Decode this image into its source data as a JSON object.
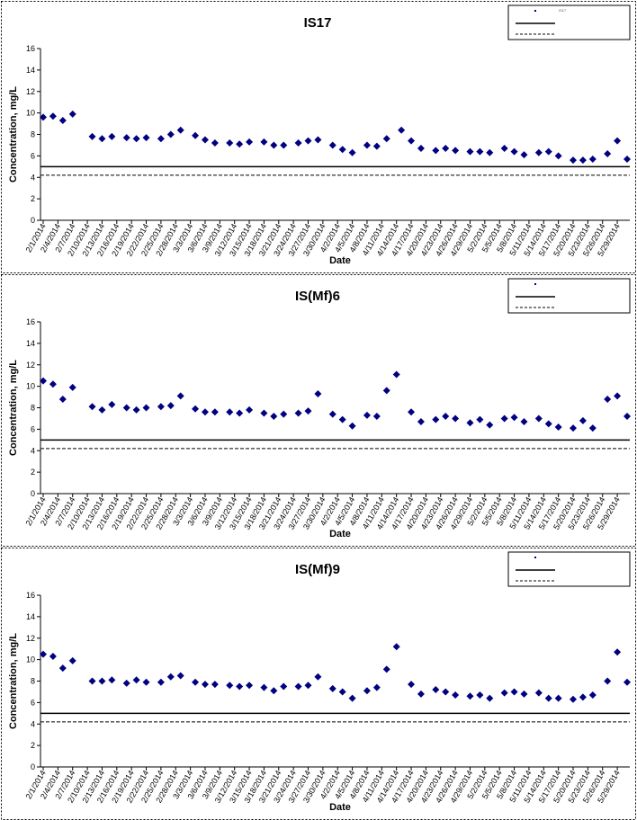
{
  "chart_data": [
    {
      "type": "scatter",
      "title": "IS17",
      "xlabel": "Date",
      "ylabel": "Concentration, mg/L",
      "ylim": [
        0,
        16
      ],
      "yticks": [
        0,
        2,
        4,
        6,
        8,
        10,
        12,
        14,
        16
      ],
      "xlim": [
        "2/1/2014",
        "5/31/2014"
      ],
      "x_tick_labels": [
        "2/1/2014",
        "2/4/2014",
        "2/7/2014",
        "2/10/2014",
        "2/13/2014",
        "2/16/2014",
        "2/19/2014",
        "2/22/2014",
        "2/25/2014",
        "2/28/2014",
        "3/3/2014",
        "3/6/2014",
        "3/9/2014",
        "3/12/2014",
        "3/15/2014",
        "3/18/2014",
        "3/21/2014",
        "3/24/2014",
        "3/27/2014",
        "3/30/2014",
        "4/2/2014",
        "4/5/2014",
        "4/8/2014",
        "4/11/2014",
        "4/14/2014",
        "4/17/2014",
        "4/20/2014",
        "4/23/2014",
        "4/26/2014",
        "4/29/2014",
        "5/2/2014",
        "5/5/2014",
        "5/8/2014",
        "5/11/2014",
        "5/14/2014",
        "5/17/2014",
        "5/20/2014",
        "5/23/2014",
        "5/26/2014",
        "5/29/2014"
      ],
      "grid": false,
      "legend_position": "top-right",
      "legend_entries": [
        "IS17",
        "",
        ""
      ],
      "reference_lines": [
        {
          "style": "solid",
          "y": 5.0
        },
        {
          "style": "dashed",
          "y": 4.2
        }
      ],
      "series": [
        {
          "name": "IS17",
          "color": "#000080",
          "x": [
            "2/1/2014",
            "2/3/2014",
            "2/5/2014",
            "2/7/2014",
            "2/11/2014",
            "2/13/2014",
            "2/15/2014",
            "2/18/2014",
            "2/20/2014",
            "2/22/2014",
            "2/25/2014",
            "2/27/2014",
            "2/29/2014",
            "3/4/2014",
            "3/6/2014",
            "3/8/2014",
            "3/11/2014",
            "3/13/2014",
            "3/15/2014",
            "3/18/2014",
            "3/20/2014",
            "3/22/2014",
            "3/25/2014",
            "3/27/2014",
            "3/29/2014",
            "4/1/2014",
            "4/3/2014",
            "4/5/2014",
            "4/8/2014",
            "4/10/2014",
            "4/12/2014",
            "4/15/2014",
            "4/17/2014",
            "4/19/2014",
            "4/22/2014",
            "4/24/2014",
            "4/26/2014",
            "4/29/2014",
            "5/1/2014",
            "5/3/2014",
            "5/6/2014",
            "5/8/2014",
            "5/10/2014",
            "5/13/2014",
            "5/15/2014",
            "5/17/2014",
            "5/20/2014",
            "5/22/2014",
            "5/24/2014",
            "5/27/2014",
            "5/29/2014",
            "5/31/2014"
          ],
          "y": [
            9.6,
            9.7,
            9.3,
            9.9,
            7.8,
            7.6,
            7.8,
            7.7,
            7.6,
            7.7,
            7.6,
            8.0,
            8.4,
            7.9,
            7.5,
            7.2,
            7.2,
            7.1,
            7.3,
            7.3,
            7.0,
            7.0,
            7.2,
            7.4,
            7.5,
            7.0,
            6.6,
            6.3,
            7.0,
            6.9,
            7.6,
            8.4,
            7.4,
            6.7,
            6.5,
            6.7,
            6.5,
            6.4,
            6.4,
            6.3,
            6.7,
            6.4,
            6.1,
            6.3,
            6.4,
            6.0,
            5.6,
            5.6,
            5.7,
            6.2,
            7.4,
            5.7
          ]
        }
      ]
    },
    {
      "type": "scatter",
      "title": "IS(Mf)6",
      "xlabel": "Date",
      "ylabel": "Concentration, mg/L",
      "ylim": [
        0,
        16
      ],
      "yticks": [
        0,
        2,
        4,
        6,
        8,
        10,
        12,
        14,
        16
      ],
      "xlim": [
        "2/1/2014",
        "5/31/2014"
      ],
      "x_tick_labels": [
        "2/1/2014",
        "2/4/2014",
        "2/7/2014",
        "2/10/2014",
        "2/13/2014",
        "2/16/2014",
        "2/19/2014",
        "2/22/2014",
        "2/25/2014",
        "2/28/2014",
        "3/3/2014",
        "3/6/2014",
        "3/9/2014",
        "3/12/2014",
        "3/15/2014",
        "3/18/2014",
        "3/21/2014",
        "3/24/2014",
        "3/27/2014",
        "3/30/2014",
        "4/2/2014",
        "4/5/2014",
        "4/8/2014",
        "4/11/2014",
        "4/14/2014",
        "4/17/2014",
        "4/20/2014",
        "4/23/2014",
        "4/26/2014",
        "4/29/2014",
        "5/2/2014",
        "5/5/2014",
        "5/8/2014",
        "5/11/2014",
        "5/14/2014",
        "5/17/2014",
        "5/20/2014",
        "5/23/2014",
        "5/26/2014",
        "5/29/2014"
      ],
      "grid": false,
      "legend_position": "top-right",
      "legend_entries": [
        "",
        "",
        ""
      ],
      "reference_lines": [
        {
          "style": "solid",
          "y": 5.0
        },
        {
          "style": "dashed",
          "y": 4.2
        }
      ],
      "series": [
        {
          "name": "",
          "color": "#000080",
          "x": [
            "2/1/2014",
            "2/3/2014",
            "2/5/2014",
            "2/7/2014",
            "2/11/2014",
            "2/13/2014",
            "2/15/2014",
            "2/18/2014",
            "2/20/2014",
            "2/22/2014",
            "2/25/2014",
            "2/27/2014",
            "2/29/2014",
            "3/4/2014",
            "3/6/2014",
            "3/8/2014",
            "3/11/2014",
            "3/13/2014",
            "3/15/2014",
            "3/18/2014",
            "3/20/2014",
            "3/22/2014",
            "3/25/2014",
            "3/27/2014",
            "3/29/2014",
            "4/1/2014",
            "4/3/2014",
            "4/5/2014",
            "4/8/2014",
            "4/10/2014",
            "4/12/2014",
            "4/14/2014",
            "4/17/2014",
            "4/19/2014",
            "4/22/2014",
            "4/24/2014",
            "4/26/2014",
            "4/29/2014",
            "5/1/2014",
            "5/3/2014",
            "5/6/2014",
            "5/8/2014",
            "5/10/2014",
            "5/13/2014",
            "5/15/2014",
            "5/17/2014",
            "5/20/2014",
            "5/22/2014",
            "5/24/2014",
            "5/27/2014",
            "5/29/2014",
            "5/31/2014"
          ],
          "y": [
            10.5,
            10.2,
            8.8,
            9.9,
            8.1,
            7.8,
            8.3,
            8.0,
            7.8,
            8.0,
            8.1,
            8.2,
            9.1,
            7.9,
            7.6,
            7.6,
            7.6,
            7.5,
            7.8,
            7.5,
            7.2,
            7.4,
            7.5,
            7.7,
            9.3,
            7.4,
            6.9,
            6.3,
            7.3,
            7.2,
            9.6,
            11.1,
            7.6,
            6.7,
            6.9,
            7.2,
            7.0,
            6.6,
            6.9,
            6.4,
            7.0,
            7.1,
            6.7,
            7.0,
            6.5,
            6.2,
            6.1,
            6.8,
            6.1,
            8.8,
            9.1,
            7.2
          ]
        }
      ]
    },
    {
      "type": "scatter",
      "title": "IS(Mf)9",
      "xlabel": "Date",
      "ylabel": "Concentration, mg/L",
      "ylim": [
        0,
        16
      ],
      "yticks": [
        0,
        2,
        4,
        6,
        8,
        10,
        12,
        14,
        16
      ],
      "xlim": [
        "2/1/2014",
        "5/31/2014"
      ],
      "x_tick_labels": [
        "2/1/2014",
        "2/4/2014",
        "2/7/2014",
        "2/10/2014",
        "2/13/2014",
        "2/16/2014",
        "2/19/2014",
        "2/22/2014",
        "2/25/2014",
        "2/28/2014",
        "3/3/2014",
        "3/6/2014",
        "3/9/2014",
        "3/12/2014",
        "3/15/2014",
        "3/18/2014",
        "3/21/2014",
        "3/24/2014",
        "3/27/2014",
        "3/30/2014",
        "4/2/2014",
        "4/5/2014",
        "4/8/2014",
        "4/11/2014",
        "4/14/2014",
        "4/17/2014",
        "4/20/2014",
        "4/23/2014",
        "4/26/2014",
        "4/29/2014",
        "5/2/2014",
        "5/5/2014",
        "5/8/2014",
        "5/11/2014",
        "5/14/2014",
        "5/17/2014",
        "5/20/2014",
        "5/23/2014",
        "5/26/2014",
        "5/29/2014"
      ],
      "grid": false,
      "legend_position": "top-right",
      "legend_entries": [
        "",
        "",
        ""
      ],
      "reference_lines": [
        {
          "style": "solid",
          "y": 5.0
        },
        {
          "style": "dashed",
          "y": 4.2
        }
      ],
      "series": [
        {
          "name": "",
          "color": "#000080",
          "x": [
            "2/1/2014",
            "2/3/2014",
            "2/5/2014",
            "2/7/2014",
            "2/11/2014",
            "2/13/2014",
            "2/15/2014",
            "2/18/2014",
            "2/20/2014",
            "2/22/2014",
            "2/25/2014",
            "2/27/2014",
            "2/29/2014",
            "3/4/2014",
            "3/6/2014",
            "3/8/2014",
            "3/11/2014",
            "3/13/2014",
            "3/15/2014",
            "3/18/2014",
            "3/20/2014",
            "3/22/2014",
            "3/25/2014",
            "3/27/2014",
            "3/29/2014",
            "4/1/2014",
            "4/3/2014",
            "4/5/2014",
            "4/8/2014",
            "4/10/2014",
            "4/12/2014",
            "4/14/2014",
            "4/17/2014",
            "4/19/2014",
            "4/22/2014",
            "4/24/2014",
            "4/26/2014",
            "4/29/2014",
            "5/1/2014",
            "5/3/2014",
            "5/6/2014",
            "5/8/2014",
            "5/10/2014",
            "5/13/2014",
            "5/15/2014",
            "5/17/2014",
            "5/20/2014",
            "5/22/2014",
            "5/24/2014",
            "5/27/2014",
            "5/29/2014",
            "5/31/2014"
          ],
          "y": [
            10.5,
            10.3,
            9.2,
            9.9,
            8.0,
            8.0,
            8.1,
            7.8,
            8.1,
            7.9,
            7.9,
            8.4,
            8.5,
            7.9,
            7.7,
            7.7,
            7.6,
            7.5,
            7.6,
            7.4,
            7.1,
            7.5,
            7.5,
            7.6,
            8.4,
            7.3,
            7.0,
            6.4,
            7.1,
            7.4,
            9.1,
            11.2,
            7.7,
            6.8,
            7.2,
            7.0,
            6.7,
            6.6,
            6.7,
            6.4,
            6.9,
            7.0,
            6.8,
            6.9,
            6.4,
            6.4,
            6.3,
            6.5,
            6.7,
            8.0,
            10.7,
            7.9
          ]
        }
      ]
    }
  ]
}
